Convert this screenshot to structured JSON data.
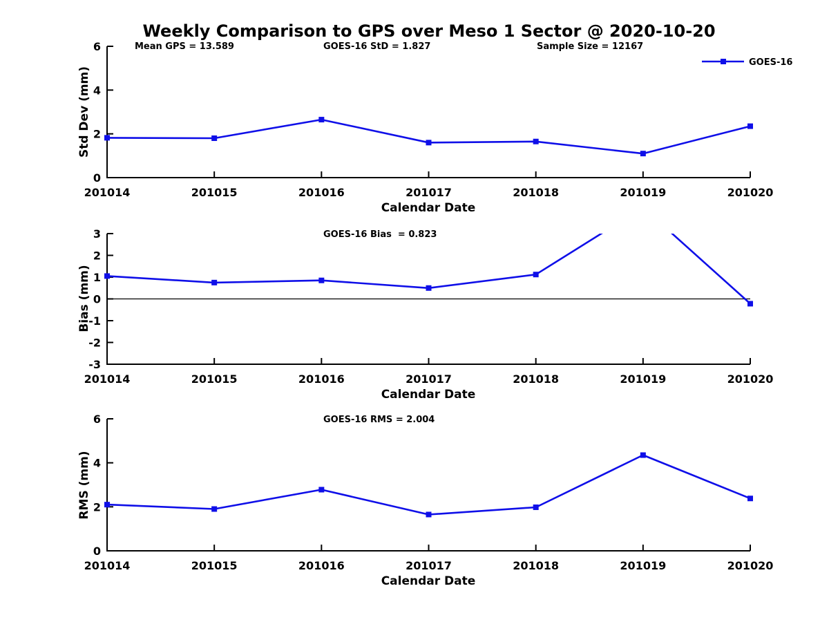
{
  "title": "Weekly Comparison to GPS over Meso 1 Sector @ 2020-10-20",
  "colors": {
    "line": "#0f0fe8",
    "axis": "#000000",
    "text": "#000000",
    "background": "#ffffff"
  },
  "legend": {
    "label": "GOES-16",
    "position": "top-right",
    "marker": "filled-square"
  },
  "chart_data": [
    {
      "type": "line",
      "name": "std-dev",
      "ylabel": "Std Dev (mm)",
      "xlabel": "Calendar Date",
      "categories": [
        "201014",
        "201015",
        "201016",
        "201017",
        "201018",
        "201019",
        "201020"
      ],
      "series": [
        {
          "name": "GOES-16",
          "values": [
            1.82,
            1.8,
            2.65,
            1.6,
            1.65,
            1.1,
            2.35
          ]
        }
      ],
      "ylim": [
        0,
        6
      ],
      "yticks": [
        0,
        2,
        4,
        6
      ],
      "zero_line": false,
      "grid": false,
      "annotations": [
        "Mean GPS = 13.589",
        "GOES-16 StD = 1.827",
        "Sample Size = 12167"
      ]
    },
    {
      "type": "line",
      "name": "bias",
      "ylabel": "Bias (mm)",
      "xlabel": "Calendar Date",
      "categories": [
        "201014",
        "201015",
        "201016",
        "201017",
        "201018",
        "201019",
        "201020"
      ],
      "series": [
        {
          "name": "GOES-16",
          "values": [
            1.05,
            0.75,
            0.85,
            0.5,
            1.12,
            4.2,
            -0.22
          ]
        }
      ],
      "ylim": [
        -3,
        3
      ],
      "yticks": [
        -3,
        -2,
        -1,
        0,
        1,
        2,
        3
      ],
      "zero_line": true,
      "grid": false,
      "clip_note": "201019 value exceeds ylim and is clipped at top of axes",
      "annotations": [
        "GOES-16 Bias  = 0.823"
      ]
    },
    {
      "type": "line",
      "name": "rms",
      "ylabel": "RMS (mm)",
      "xlabel": "Calendar Date",
      "categories": [
        "201014",
        "201015",
        "201016",
        "201017",
        "201018",
        "201019",
        "201020"
      ],
      "series": [
        {
          "name": "GOES-16",
          "values": [
            2.1,
            1.9,
            2.78,
            1.65,
            1.98,
            4.35,
            2.38
          ]
        }
      ],
      "ylim": [
        0,
        6
      ],
      "yticks": [
        0,
        2,
        4,
        6
      ],
      "zero_line": false,
      "grid": false,
      "annotations": [
        "GOES-16 RMS = 2.004"
      ]
    }
  ]
}
